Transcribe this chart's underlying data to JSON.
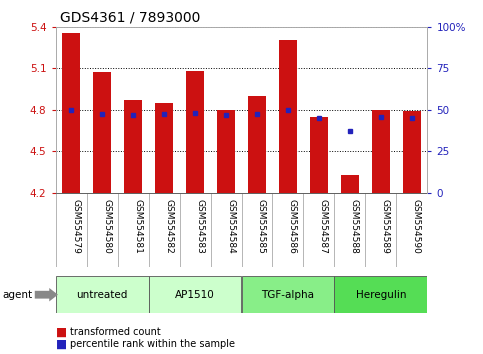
{
  "title": "GDS4361 / 7893000",
  "samples": [
    "GSM554579",
    "GSM554580",
    "GSM554581",
    "GSM554582",
    "GSM554583",
    "GSM554584",
    "GSM554585",
    "GSM554586",
    "GSM554587",
    "GSM554588",
    "GSM554589",
    "GSM554590"
  ],
  "red_values": [
    5.35,
    5.07,
    4.87,
    4.85,
    5.08,
    4.8,
    4.9,
    5.3,
    4.75,
    4.33,
    4.8,
    4.79
  ],
  "blue_values": [
    4.8,
    4.77,
    4.76,
    4.77,
    4.78,
    4.76,
    4.77,
    4.8,
    4.74,
    4.65,
    4.75,
    4.74
  ],
  "ymin": 4.2,
  "ymax": 5.4,
  "yticks_left": [
    4.2,
    4.5,
    4.8,
    5.1,
    5.4
  ],
  "ytick_labels_left": [
    "4.2",
    "4.5",
    "4.8",
    "5.1",
    "5.4"
  ],
  "yticks_right": [
    0,
    25,
    50,
    75,
    100
  ],
  "ytick_labels_right": [
    "0",
    "25",
    "50",
    "75",
    "100%"
  ],
  "bar_color": "#cc1111",
  "dot_color": "#2222bb",
  "agent_groups": [
    {
      "label": "untreated",
      "start": 0,
      "end": 3,
      "color": "#ccffcc"
    },
    {
      "label": "AP1510",
      "start": 3,
      "end": 6,
      "color": "#ccffcc"
    },
    {
      "label": "TGF-alpha",
      "start": 6,
      "end": 9,
      "color": "#88ee88"
    },
    {
      "label": "Heregulin",
      "start": 9,
      "end": 12,
      "color": "#55dd55"
    }
  ],
  "legend_red": "transformed count",
  "legend_blue": "percentile rank within the sample",
  "bar_width": 0.6,
  "left_tick_color": "#cc1111",
  "right_tick_color": "#2222bb",
  "title_fontsize": 10,
  "tick_fontsize": 7.5,
  "sample_fontsize": 6.5,
  "agent_fontsize": 7.5,
  "legend_fontsize": 7
}
